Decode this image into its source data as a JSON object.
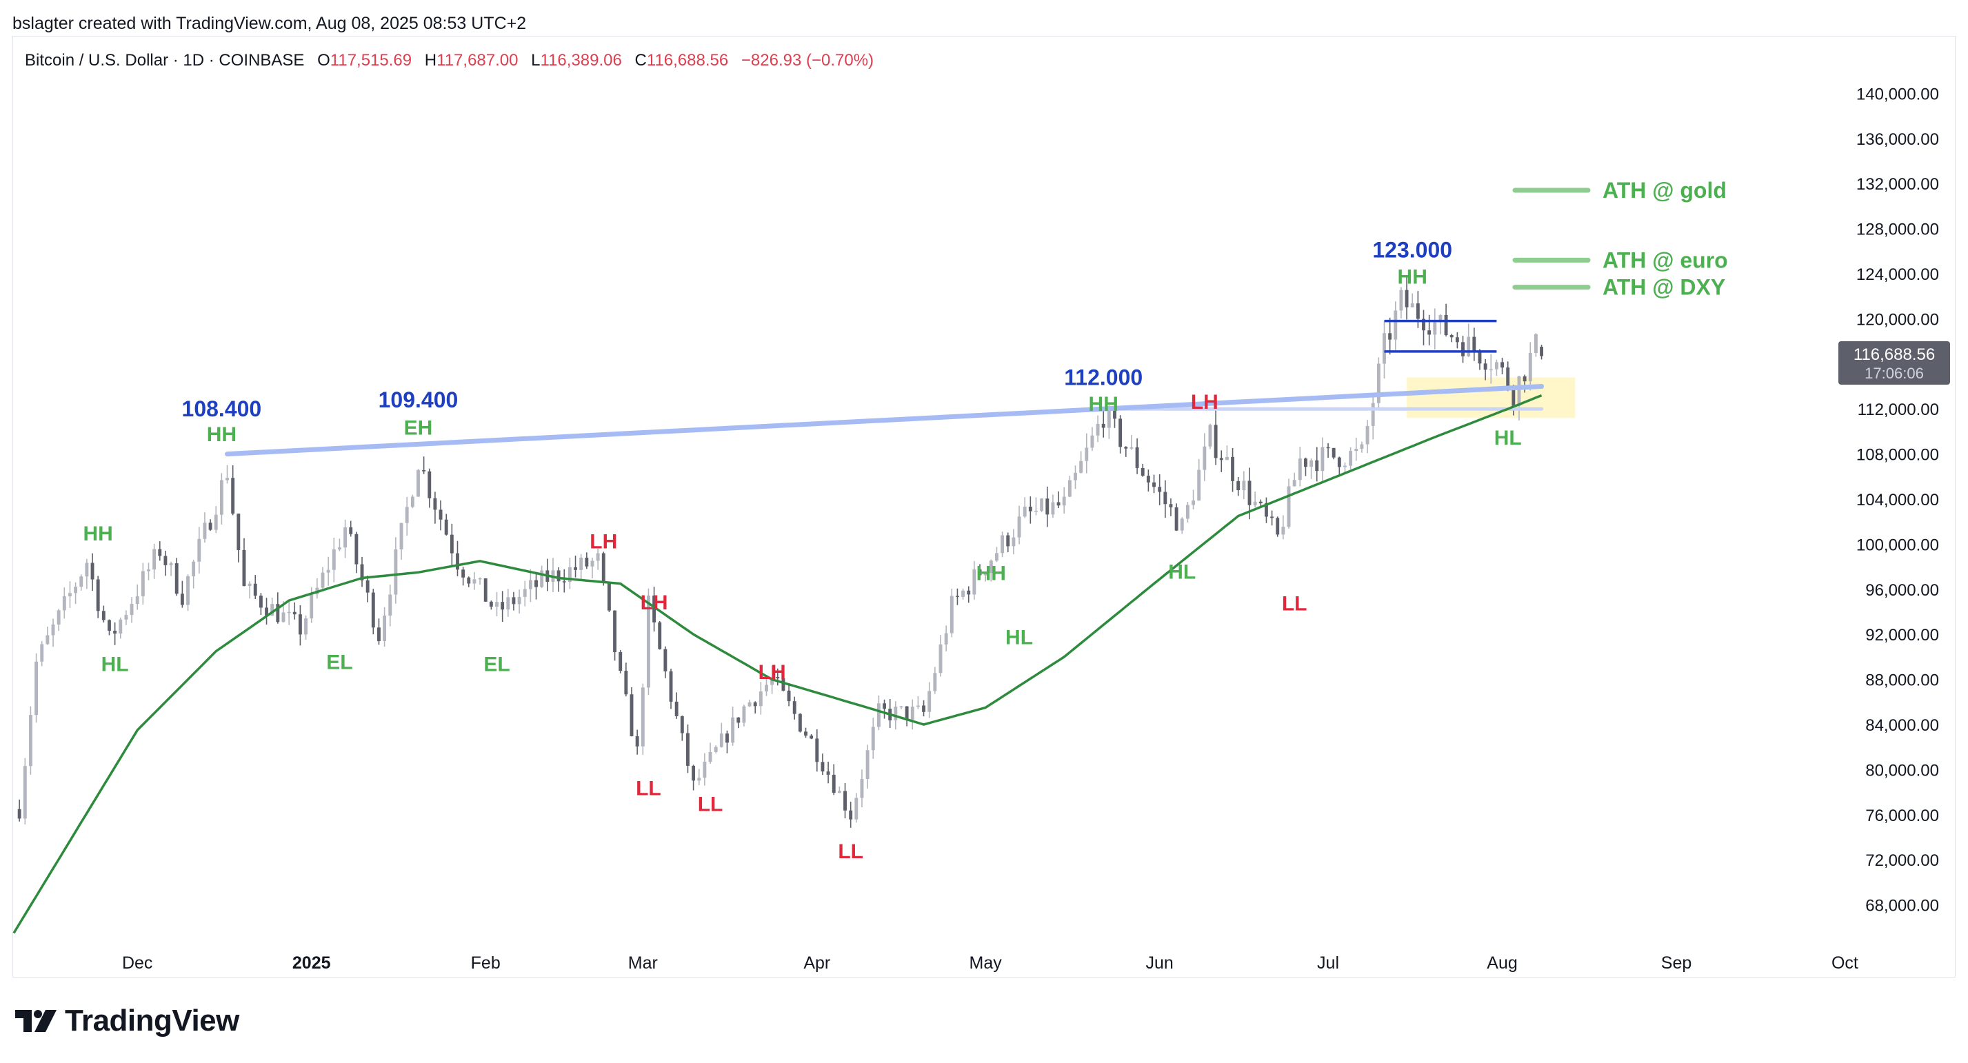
{
  "attribution": "bslagter created with TradingView.com, Aug 08, 2025 08:53 UTC+2",
  "legend": {
    "symbol": "Bitcoin / U.S. Dollar · 1D · COINBASE",
    "open_label": "O",
    "open": "117,515.69",
    "high_label": "H",
    "high": "117,687.00",
    "low_label": "L",
    "low": "116,389.06",
    "close_label": "C",
    "close": "116,688.56",
    "change": "−826.93 (−0.70%)"
  },
  "price_badge": {
    "price": "116,688.56",
    "countdown": "17:06:06"
  },
  "brand": {
    "name": "TradingView"
  },
  "colors": {
    "candle": "#b2b5be",
    "candle_down": "#5d606b",
    "ma": "#2e8b3e",
    "trendline": "#a6bbf4",
    "label_green": "#4caf50",
    "label_red": "#e0283c",
    "label_blue": "#1e3fbf",
    "ath_line": "#8fcc8f",
    "highlight": "#fff7c9",
    "range_line": "#1e3fbf"
  },
  "chart_data": {
    "type": "candlestick",
    "title": "Bitcoin / U.S. Dollar · 1D · COINBASE",
    "y_axis": {
      "side": "right",
      "ylim": [
        64000,
        144000
      ],
      "ticks": [
        "140,000.00",
        "136,000.00",
        "132,000.00",
        "128,000.00",
        "124,000.00",
        "120,000.00",
        "116,000.00",
        "112,000.00",
        "108,000.00",
        "104,000.00",
        "100,000.00",
        "96,000.00",
        "92,000.00",
        "88,000.00",
        "84,000.00",
        "80,000.00",
        "76,000.00",
        "72,000.00",
        "68,000.00"
      ]
    },
    "x_axis": {
      "range": [
        "2024-11-09",
        "2025-10-05"
      ],
      "ticks": [
        {
          "date": "2024-12-01",
          "label": "Dec",
          "bold": false
        },
        {
          "date": "2025-01-01",
          "label": "2025",
          "bold": true
        },
        {
          "date": "2025-02-01",
          "label": "Feb",
          "bold": false
        },
        {
          "date": "2025-03-01",
          "label": "Mar",
          "bold": false
        },
        {
          "date": "2025-04-01",
          "label": "Apr",
          "bold": false
        },
        {
          "date": "2025-05-01",
          "label": "May",
          "bold": false
        },
        {
          "date": "2025-06-01",
          "label": "Jun",
          "bold": false
        },
        {
          "date": "2025-07-01",
          "label": "Jul",
          "bold": false
        },
        {
          "date": "2025-08-01",
          "label": "Aug",
          "bold": false
        },
        {
          "date": "2025-09-01",
          "label": "Sep",
          "bold": false
        },
        {
          "date": "2025-10-01",
          "label": "Oct",
          "bold": false
        }
      ]
    },
    "price_path": [
      [
        "2024-11-10",
        76500
      ],
      [
        "2024-11-13",
        89500
      ],
      [
        "2024-11-22",
        98500
      ],
      [
        "2024-11-26",
        91500
      ],
      [
        "2024-12-05",
        99500
      ],
      [
        "2024-12-09",
        95500
      ],
      [
        "2024-12-17",
        106500
      ],
      [
        "2024-12-20",
        96000
      ],
      [
        "2024-12-30",
        92500
      ],
      [
        "2025-01-07",
        101500
      ],
      [
        "2025-01-13",
        92000
      ],
      [
        "2025-01-20",
        107500
      ],
      [
        "2025-01-27",
        98500
      ],
      [
        "2025-02-03",
        94000
      ],
      [
        "2025-02-12",
        97000
      ],
      [
        "2025-02-21",
        98500
      ],
      [
        "2025-02-25",
        88000
      ],
      [
        "2025-02-28",
        81500
      ],
      [
        "2025-03-02",
        94500
      ],
      [
        "2025-03-10",
        78500
      ],
      [
        "2025-03-19",
        85500
      ],
      [
        "2025-03-24",
        88000
      ],
      [
        "2025-03-31",
        82500
      ],
      [
        "2025-04-07",
        76000
      ],
      [
        "2025-04-12",
        85000
      ],
      [
        "2025-04-20",
        85000
      ],
      [
        "2025-04-25",
        94500
      ],
      [
        "2025-05-08",
        102500
      ],
      [
        "2025-05-15",
        103500
      ],
      [
        "2025-05-22",
        111500
      ],
      [
        "2025-06-05",
        101500
      ],
      [
        "2025-06-10",
        109500
      ],
      [
        "2025-06-22",
        100500
      ],
      [
        "2025-06-26",
        107500
      ],
      [
        "2025-07-07",
        108000
      ],
      [
        "2025-07-11",
        117500
      ],
      [
        "2025-07-14",
        121500
      ],
      [
        "2025-07-31",
        116000
      ],
      [
        "2025-08-03",
        113500
      ],
      [
        "2025-08-07",
        117500
      ],
      [
        "2025-08-08",
        116700
      ]
    ],
    "moving_average": [
      [
        "2024-11-09",
        65500
      ],
      [
        "2024-11-20",
        74500
      ],
      [
        "2024-12-01",
        83500
      ],
      [
        "2024-12-15",
        90500
      ],
      [
        "2024-12-28",
        95000
      ],
      [
        "2025-01-10",
        97000
      ],
      [
        "2025-01-20",
        97500
      ],
      [
        "2025-01-31",
        98500
      ],
      [
        "2025-02-14",
        97000
      ],
      [
        "2025-02-25",
        96500
      ],
      [
        "2025-03-10",
        92000
      ],
      [
        "2025-03-24",
        88000
      ],
      [
        "2025-04-10",
        85500
      ],
      [
        "2025-04-20",
        84000
      ],
      [
        "2025-05-01",
        85500
      ],
      [
        "2025-05-15",
        90000
      ],
      [
        "2025-05-31",
        96500
      ],
      [
        "2025-06-15",
        102500
      ],
      [
        "2025-06-30",
        105500
      ],
      [
        "2025-07-10",
        107500
      ],
      [
        "2025-07-20",
        109500
      ],
      [
        "2025-08-02",
        112000
      ],
      [
        "2025-08-08",
        113200
      ]
    ],
    "last_ohlc": {
      "open": 117515.69,
      "high": 117687.0,
      "low": 116389.06,
      "close": 116688.56,
      "change": -826.93,
      "change_pct": -0.7
    },
    "trendline": {
      "from": [
        "2024-12-17",
        108000
      ],
      "to": [
        "2025-08-08",
        114000
      ]
    },
    "range_box": {
      "from": "2025-07-11",
      "to": "2025-07-31",
      "top": 119800,
      "bottom": 117100
    },
    "highlight_zone": {
      "from": "2025-07-15",
      "to": "2025-08-14",
      "top": 114800,
      "bottom": 111200
    },
    "support_line": {
      "from": "2025-05-22",
      "to": "2025-08-08",
      "price": 112000
    },
    "ath_lines": [
      {
        "label": "ATH @ gold",
        "price": 131400
      },
      {
        "label": "ATH @ euro",
        "price": 125200
      },
      {
        "label": "ATH @ DXY",
        "price": 122800
      }
    ],
    "annotations": [
      {
        "text": "108.400",
        "date": "2024-12-16",
        "price": 112000,
        "color": "blue"
      },
      {
        "text": "HH",
        "date": "2024-12-16",
        "price": 109800,
        "color": "green"
      },
      {
        "text": "109.400",
        "date": "2025-01-20",
        "price": 112800,
        "color": "blue"
      },
      {
        "text": "EH",
        "date": "2025-01-20",
        "price": 110400,
        "color": "green"
      },
      {
        "text": "HH",
        "date": "2024-11-24",
        "price": 101000,
        "color": "green"
      },
      {
        "text": "HL",
        "date": "2024-11-27",
        "price": 89400,
        "color": "green"
      },
      {
        "text": "EL",
        "date": "2025-01-06",
        "price": 89600,
        "color": "green"
      },
      {
        "text": "EL",
        "date": "2025-02-03",
        "price": 89400,
        "color": "green"
      },
      {
        "text": "LH",
        "date": "2025-02-22",
        "price": 100300,
        "color": "red"
      },
      {
        "text": "LH",
        "date": "2025-03-03",
        "price": 94900,
        "color": "red"
      },
      {
        "text": "LL",
        "date": "2025-03-02",
        "price": 78400,
        "color": "red"
      },
      {
        "text": "LL",
        "date": "2025-03-13",
        "price": 77000,
        "color": "red"
      },
      {
        "text": "LH",
        "date": "2025-03-24",
        "price": 88700,
        "color": "red"
      },
      {
        "text": "LL",
        "date": "2025-04-07",
        "price": 72800,
        "color": "red"
      },
      {
        "text": "HH",
        "date": "2025-05-02",
        "price": 97500,
        "color": "green"
      },
      {
        "text": "HL",
        "date": "2025-05-07",
        "price": 91800,
        "color": "green"
      },
      {
        "text": "112.000",
        "date": "2025-05-22",
        "price": 114800,
        "color": "blue"
      },
      {
        "text": "HH",
        "date": "2025-05-22",
        "price": 112500,
        "color": "green"
      },
      {
        "text": "LH",
        "date": "2025-06-09",
        "price": 112700,
        "color": "red"
      },
      {
        "text": "HL",
        "date": "2025-06-05",
        "price": 97600,
        "color": "green"
      },
      {
        "text": "LL",
        "date": "2025-06-25",
        "price": 94800,
        "color": "red"
      },
      {
        "text": "123.000",
        "date": "2025-07-16",
        "price": 126100,
        "color": "blue"
      },
      {
        "text": "HH",
        "date": "2025-07-16",
        "price": 123800,
        "color": "green"
      },
      {
        "text": "HL",
        "date": "2025-08-02",
        "price": 109500,
        "color": "green"
      }
    ]
  }
}
